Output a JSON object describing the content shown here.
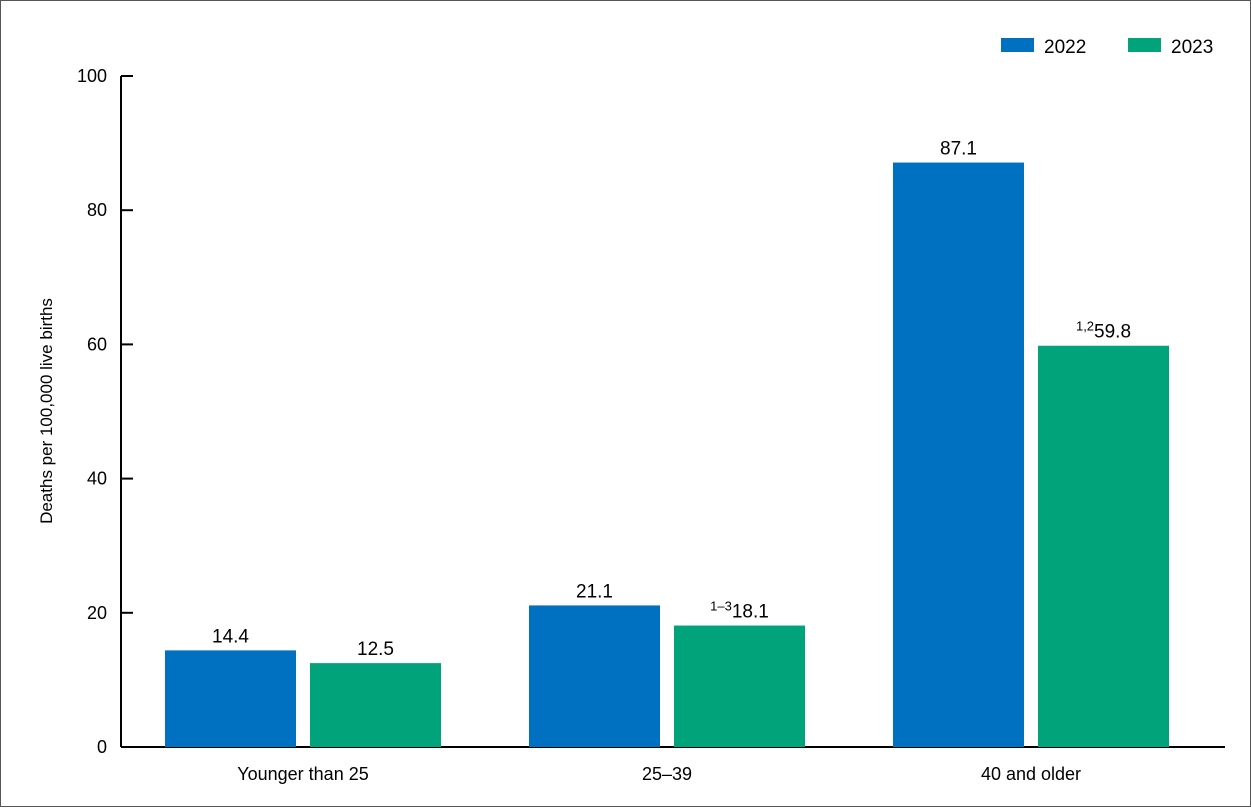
{
  "colors": {
    "2022": "#0070c0",
    "2023": "#00a37a",
    "axis": "#000000"
  },
  "legend": {
    "items": [
      {
        "label": "2022",
        "color": "#0070c0"
      },
      {
        "label": "2023",
        "color": "#00a37a"
      }
    ]
  },
  "chart_data": {
    "type": "bar",
    "categories": [
      "Younger than 25",
      "25–39",
      "40 and older"
    ],
    "series": [
      {
        "name": "2022",
        "values": [
          14.4,
          21.1,
          87.1
        ],
        "labels": [
          "14.4",
          "21.1",
          "87.1"
        ],
        "footnotes": [
          "",
          "",
          ""
        ]
      },
      {
        "name": "2023",
        "values": [
          12.5,
          18.1,
          59.8
        ],
        "labels": [
          "12.5",
          "18.1",
          "59.8"
        ],
        "footnotes": [
          "",
          "1–3",
          "1,2"
        ]
      }
    ],
    "title": "",
    "xlabel": "",
    "ylabel": "Deaths per 100,000 live births",
    "ylim": [
      0,
      100
    ],
    "yticks": [
      0,
      20,
      40,
      60,
      80,
      100
    ],
    "grid": false,
    "legend_position": "top-right"
  }
}
